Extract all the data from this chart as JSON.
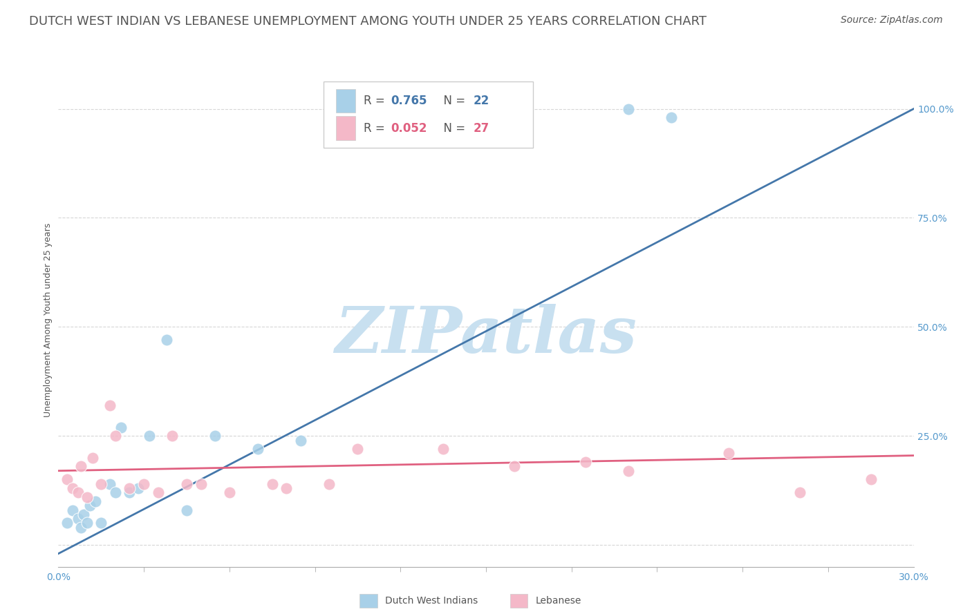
{
  "title": "DUTCH WEST INDIAN VS LEBANESE UNEMPLOYMENT AMONG YOUTH UNDER 25 YEARS CORRELATION CHART",
  "source": "Source: ZipAtlas.com",
  "ylabel": "Unemployment Among Youth under 25 years",
  "watermark": "ZIPatlas",
  "series": [
    {
      "name": "Dutch West Indians",
      "R": 0.765,
      "N": 22,
      "color": "#a8d0e8",
      "line_color": "#4477aa",
      "points_x": [
        0.3,
        0.5,
        0.7,
        0.8,
        0.9,
        1.0,
        1.1,
        1.3,
        1.5,
        1.8,
        2.0,
        2.2,
        2.5,
        2.8,
        3.2,
        3.8,
        4.5,
        5.5,
        7.0,
        8.5,
        20.0,
        21.5
      ],
      "points_y": [
        5.0,
        8.0,
        6.0,
        4.0,
        7.0,
        5.0,
        9.0,
        10.0,
        5.0,
        14.0,
        12.0,
        27.0,
        12.0,
        13.0,
        25.0,
        47.0,
        8.0,
        25.0,
        22.0,
        24.0,
        100.0,
        98.0
      ],
      "trend_x": [
        0.0,
        30.0
      ],
      "trend_y": [
        -2.0,
        100.0
      ]
    },
    {
      "name": "Lebanese",
      "R": 0.052,
      "N": 27,
      "color": "#f4b8c8",
      "line_color": "#e06080",
      "points_x": [
        0.3,
        0.5,
        0.7,
        0.8,
        1.0,
        1.2,
        1.5,
        1.8,
        2.0,
        2.5,
        3.0,
        3.5,
        4.0,
        4.5,
        5.0,
        6.0,
        7.5,
        8.0,
        9.5,
        10.5,
        13.5,
        16.0,
        18.5,
        20.0,
        23.5,
        26.0,
        28.5
      ],
      "points_y": [
        15.0,
        13.0,
        12.0,
        18.0,
        11.0,
        20.0,
        14.0,
        32.0,
        25.0,
        13.0,
        14.0,
        12.0,
        25.0,
        14.0,
        14.0,
        12.0,
        14.0,
        13.0,
        14.0,
        22.0,
        22.0,
        18.0,
        19.0,
        17.0,
        21.0,
        12.0,
        15.0
      ],
      "trend_x": [
        0.0,
        30.0
      ],
      "trend_y": [
        17.0,
        20.5
      ]
    }
  ],
  "xlim": [
    0.0,
    30.0
  ],
  "ylim": [
    -5.0,
    108.0
  ],
  "yticks": [
    0,
    25,
    50,
    75,
    100
  ],
  "ytick_labels": [
    "",
    "25.0%",
    "50.0%",
    "75.0%",
    "100.0%"
  ],
  "bg_color": "#ffffff",
  "grid_color": "#cccccc",
  "title_color": "#555555",
  "tick_color": "#5599cc",
  "watermark_color": "#c8e0f0",
  "title_fontsize": 13,
  "source_fontsize": 10,
  "axis_label_fontsize": 9,
  "legend_R_color_dwi": "#4477aa",
  "legend_R_color_leb": "#e06080",
  "legend_N_color": "#333333"
}
